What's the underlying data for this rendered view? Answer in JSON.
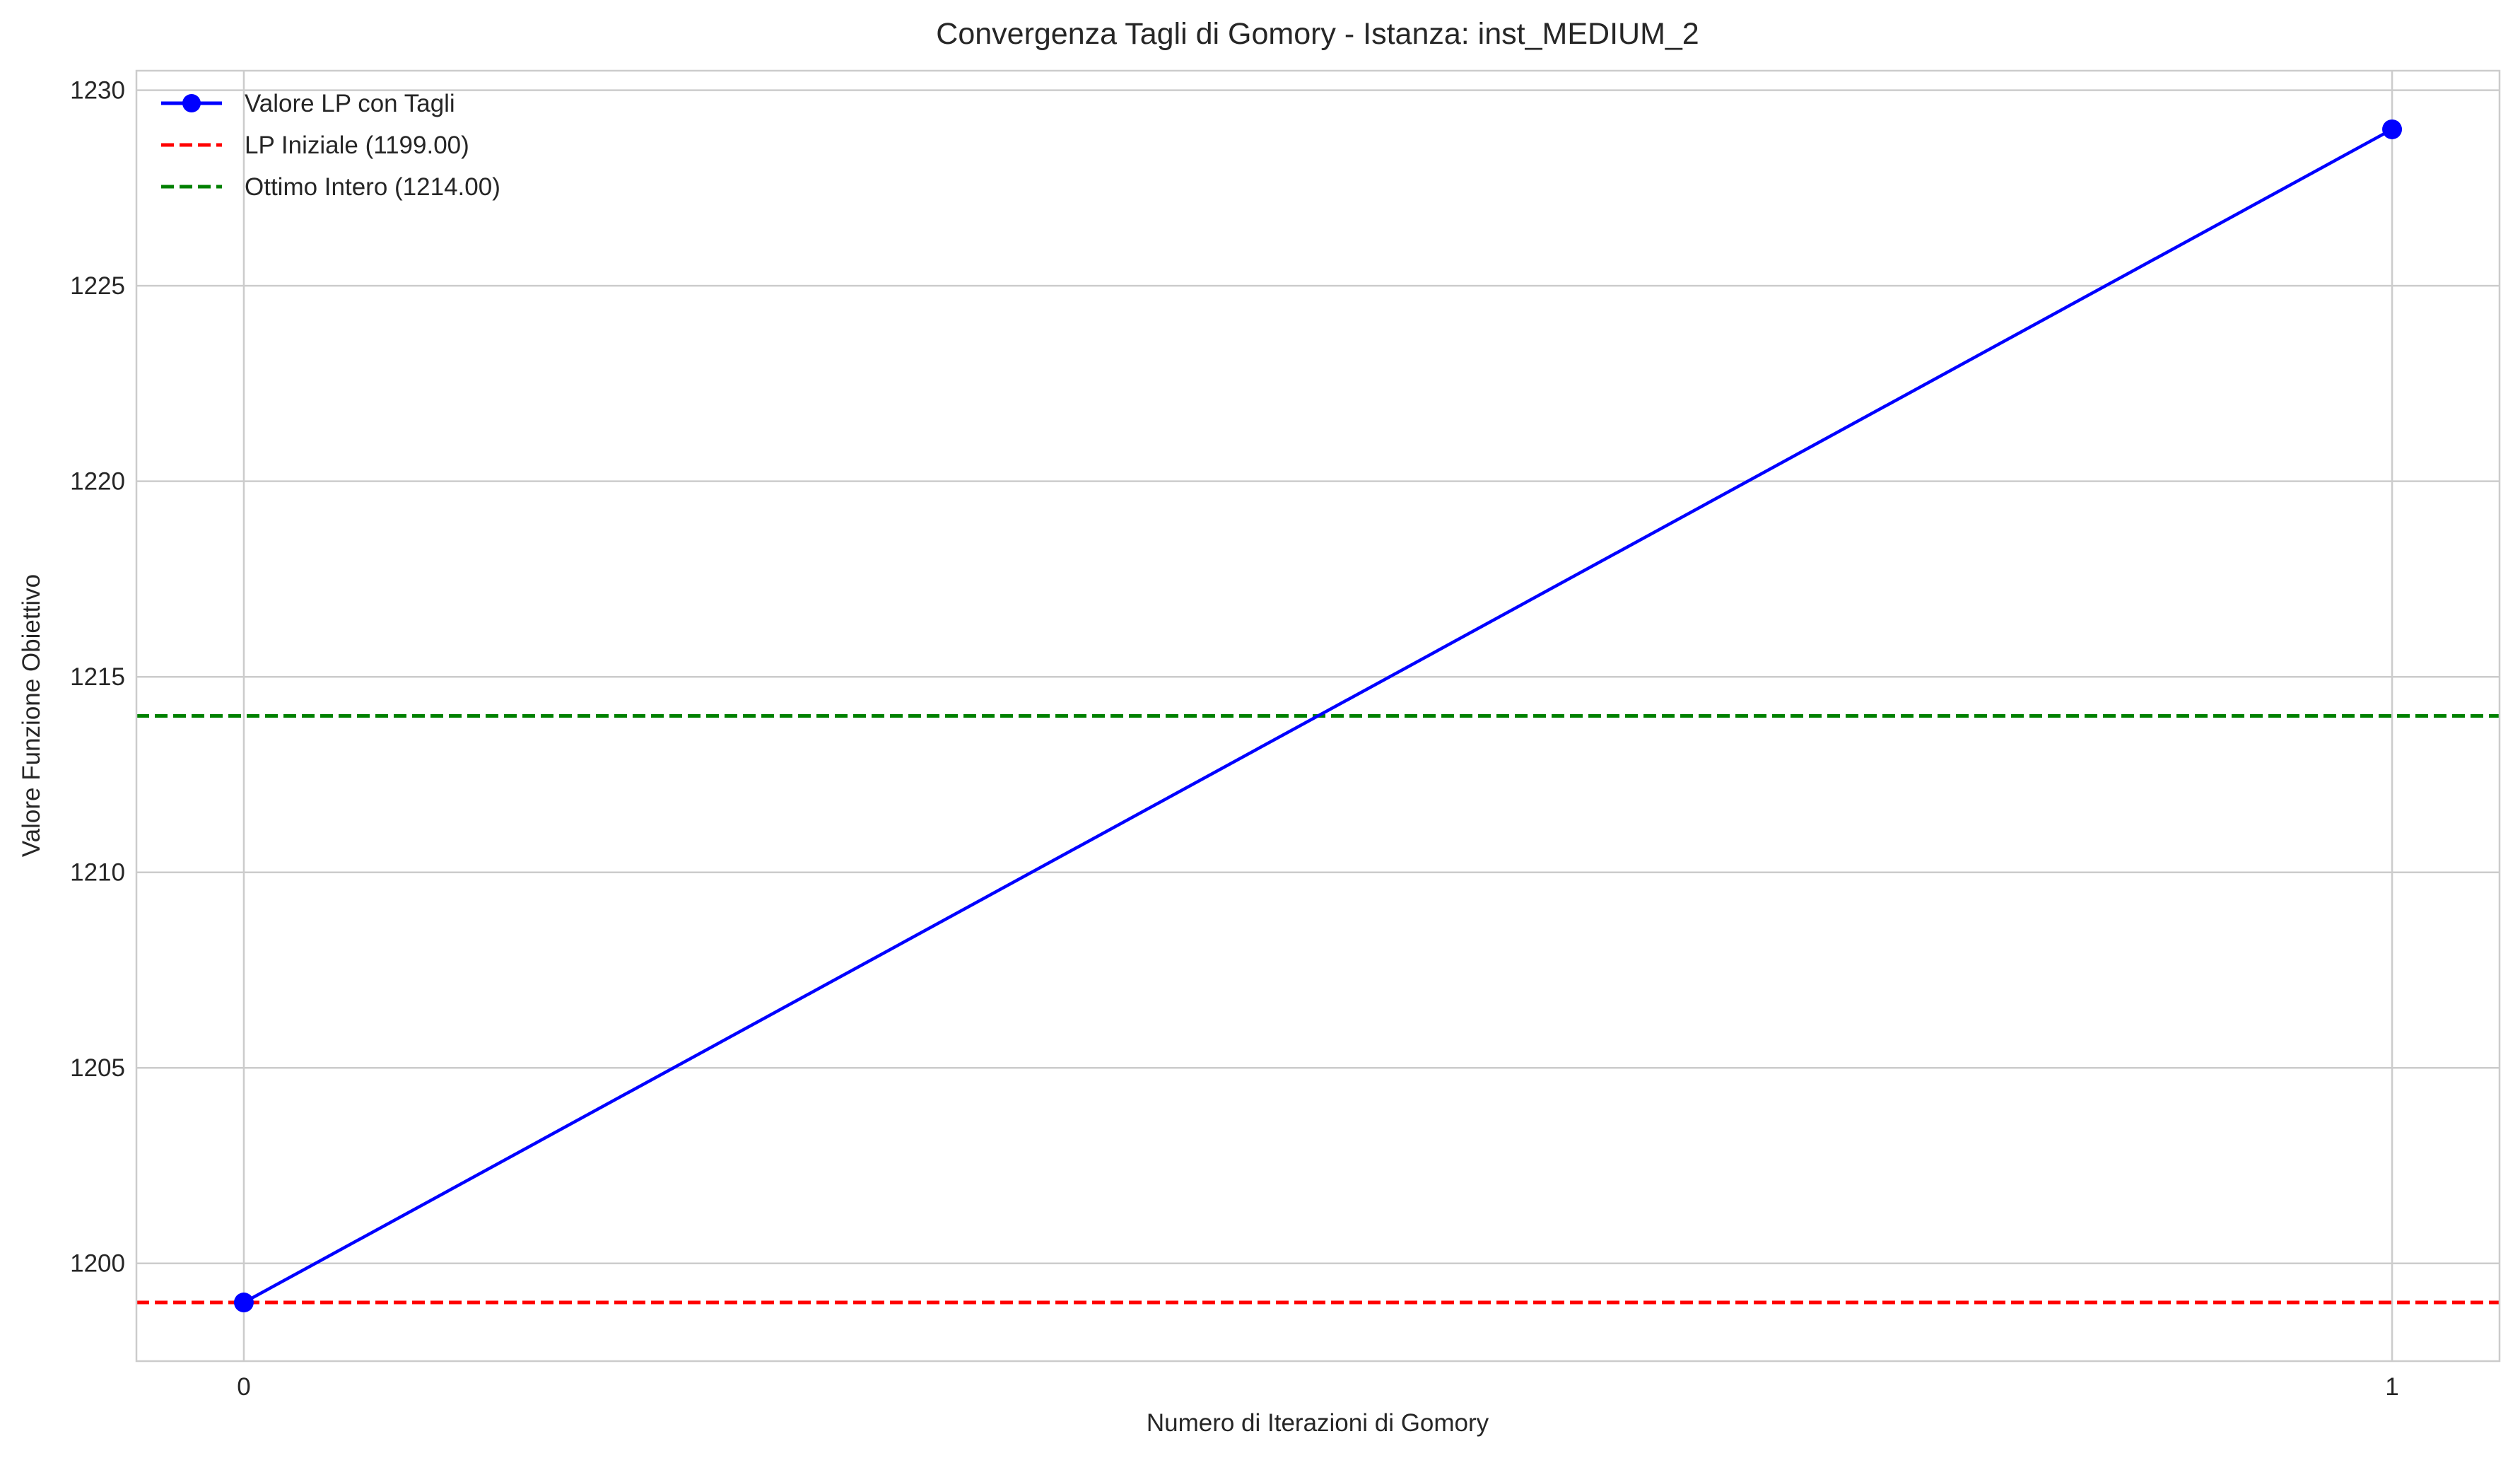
{
  "chart_data": {
    "type": "line",
    "title": "Convergenza Tagli di Gomory - Istanza: inst_MEDIUM_2",
    "xlabel": "Numero di Iterazioni di Gomory",
    "ylabel": "Valore Funzione Obiettivo",
    "x_ticks": [
      "0",
      "1"
    ],
    "y_ticks": [
      "1200",
      "1205",
      "1210",
      "1215",
      "1220",
      "1225",
      "1230"
    ],
    "xlim": [
      -0.05,
      1.05
    ],
    "ylim": [
      1197.5,
      1230.5
    ],
    "grid": true,
    "legend_position": "top-left",
    "series": [
      {
        "name": "Valore LP con Tagli",
        "kind": "line-marker",
        "color": "#0000ff",
        "x": [
          0,
          1
        ],
        "y": [
          1199,
          1229
        ]
      }
    ],
    "reference_lines": [
      {
        "name": "LP Iniziale (1199.00)",
        "kind": "hline-dashed",
        "color": "#ff0000",
        "y": 1199
      },
      {
        "name": "Ottimo Intero (1214.00)",
        "kind": "hline-dashed",
        "color": "#008000",
        "y": 1214
      }
    ]
  }
}
